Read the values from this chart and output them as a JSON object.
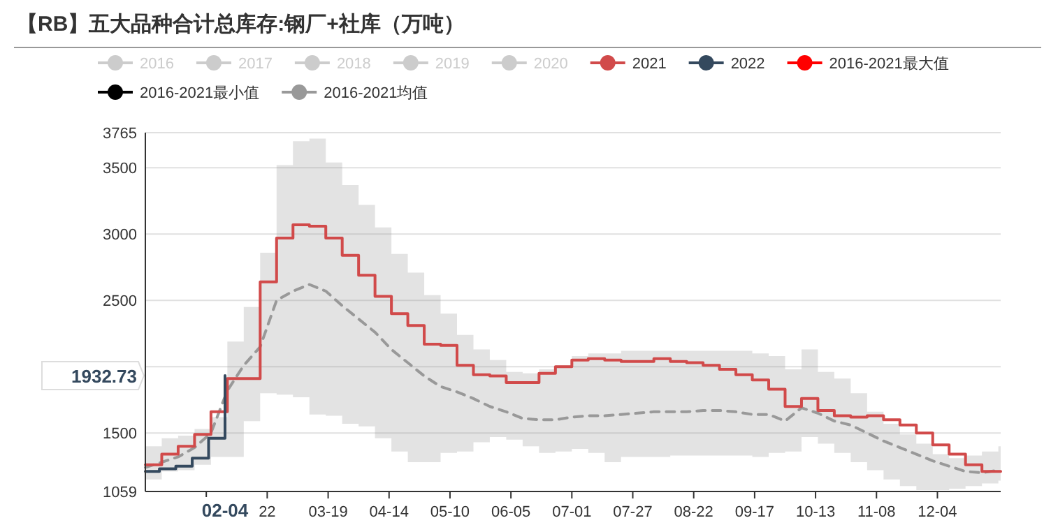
{
  "chart_data": {
    "type": "line",
    "title": "【RB】五大品种合计总库存:钢厂+社库（万吨）",
    "x": [
      "--01-01",
      "--01-08",
      "--01-15",
      "--01-22",
      "--01-29",
      "--02-05",
      "--02-12",
      "--02-19",
      "--02-26",
      "--03-04",
      "--03-11",
      "--03-18",
      "--03-25",
      "--04-01",
      "--04-08",
      "--04-15",
      "--04-22",
      "--04-29",
      "--05-06",
      "--05-13",
      "--05-20",
      "--05-27",
      "--06-03",
      "--06-10",
      "--06-17",
      "--06-24",
      "--07-01",
      "--07-08",
      "--07-15",
      "--07-22",
      "--07-29",
      "--08-05",
      "--08-12",
      "--08-19",
      "--08-26",
      "--09-02",
      "--09-09",
      "--09-16",
      "--09-23",
      "--09-30",
      "--10-07",
      "--10-14",
      "--10-21",
      "--10-28",
      "--11-04",
      "--11-11",
      "--11-18",
      "--11-25",
      "--12-02",
      "--12-09",
      "--12-16",
      "--12-23",
      "--12-30"
    ],
    "series": [
      {
        "name": "2016",
        "color": "#cccccc",
        "values": [
          null,
          null,
          null,
          null,
          null,
          null,
          null,
          null,
          null,
          null,
          null,
          null,
          null,
          null,
          null,
          null,
          null,
          null,
          null,
          null,
          null,
          null,
          null,
          null,
          null,
          null,
          null,
          null,
          null,
          null,
          null,
          null,
          null,
          null,
          null,
          null,
          null,
          null,
          null,
          null,
          null,
          null,
          null,
          null,
          null,
          null,
          null,
          null,
          null,
          null,
          null,
          null,
          null
        ]
      },
      {
        "name": "2017",
        "color": "#cccccc",
        "values": [
          null,
          null,
          null,
          null,
          null,
          null,
          null,
          null,
          null,
          null,
          null,
          null,
          null,
          null,
          null,
          null,
          null,
          null,
          null,
          null,
          null,
          null,
          null,
          null,
          null,
          null,
          null,
          null,
          null,
          null,
          null,
          null,
          null,
          null,
          null,
          null,
          null,
          null,
          null,
          null,
          null,
          null,
          null,
          null,
          null,
          null,
          null,
          null,
          null,
          null,
          null,
          null,
          null
        ]
      },
      {
        "name": "2018",
        "color": "#cccccc",
        "values": [
          null,
          null,
          null,
          null,
          null,
          null,
          null,
          null,
          null,
          null,
          null,
          null,
          null,
          null,
          null,
          null,
          null,
          null,
          null,
          null,
          null,
          null,
          null,
          null,
          null,
          null,
          null,
          null,
          null,
          null,
          null,
          null,
          null,
          null,
          null,
          null,
          null,
          null,
          null,
          null,
          null,
          null,
          null,
          null,
          null,
          null,
          null,
          null,
          null,
          null,
          null,
          null,
          null
        ]
      },
      {
        "name": "2019",
        "color": "#cccccc",
        "values": [
          null,
          null,
          null,
          null,
          null,
          null,
          null,
          null,
          null,
          null,
          null,
          null,
          null,
          null,
          null,
          null,
          null,
          null,
          null,
          null,
          null,
          null,
          null,
          null,
          null,
          null,
          null,
          null,
          null,
          null,
          null,
          null,
          null,
          null,
          null,
          null,
          null,
          null,
          null,
          null,
          null,
          null,
          null,
          null,
          null,
          null,
          null,
          null,
          null,
          null,
          null,
          null,
          null
        ]
      },
      {
        "name": "2020",
        "color": "#cccccc",
        "values": [
          null,
          null,
          null,
          null,
          null,
          null,
          null,
          null,
          null,
          null,
          null,
          null,
          null,
          null,
          null,
          null,
          null,
          null,
          null,
          null,
          null,
          null,
          null,
          null,
          null,
          null,
          null,
          null,
          null,
          null,
          null,
          null,
          null,
          null,
          null,
          null,
          null,
          null,
          null,
          null,
          null,
          null,
          null,
          null,
          null,
          null,
          null,
          null,
          null,
          null,
          null,
          null,
          null
        ]
      },
      {
        "name": "2021",
        "type": "step",
        "color": "#d14a4a",
        "values": [
          1260,
          1340,
          1400,
          1490,
          1660,
          1910,
          1910,
          2640,
          2970,
          3070,
          3060,
          2970,
          2840,
          2690,
          2530,
          2400,
          2310,
          2170,
          2160,
          2010,
          1940,
          1930,
          1880,
          1880,
          1950,
          2000,
          2050,
          2060,
          2050,
          2040,
          2040,
          2060,
          2040,
          2030,
          2010,
          1980,
          1940,
          1900,
          1830,
          1700,
          1760,
          1670,
          1630,
          1620,
          1630,
          1600,
          1560,
          1500,
          1410,
          1340,
          1260,
          1210,
          1210
        ]
      },
      {
        "name": "2022",
        "type": "step",
        "color": "#34495e",
        "x": [
          "--01-01",
          "--01-07",
          "--01-14",
          "--01-21",
          "--01-28",
          "--02-04"
        ],
        "values": [
          1210,
          1230,
          1250,
          1310,
          1460,
          1932.73
        ]
      },
      {
        "name": "2016-2021最大值",
        "color": "#ff0000",
        "values": [
          null,
          null,
          null,
          null,
          null,
          null,
          null,
          null,
          null,
          null,
          null,
          null,
          null,
          null,
          null,
          null,
          null,
          null,
          null,
          null,
          null,
          null,
          null,
          null,
          null,
          null,
          null,
          null,
          null,
          null,
          null,
          null,
          null,
          null,
          null,
          null,
          null,
          null,
          null,
          null,
          null,
          null,
          null,
          null,
          null,
          null,
          null,
          null,
          null,
          null,
          null,
          null,
          null
        ]
      },
      {
        "name": "2016-2021最小值",
        "color": "#000000",
        "values": [
          null,
          null,
          null,
          null,
          null,
          null,
          null,
          null,
          null,
          null,
          null,
          null,
          null,
          null,
          null,
          null,
          null,
          null,
          null,
          null,
          null,
          null,
          null,
          null,
          null,
          null,
          null,
          null,
          null,
          null,
          null,
          null,
          null,
          null,
          null,
          null,
          null,
          null,
          null,
          null,
          null,
          null,
          null,
          null,
          null,
          null,
          null,
          null,
          null,
          null,
          null,
          null,
          null
        ]
      },
      {
        "name": "2016-2021均值",
        "color": "#999999",
        "line_style": "dashed",
        "values": [
          1240,
          1280,
          1320,
          1390,
          1500,
          1820,
          2010,
          2150,
          2500,
          2570,
          2620,
          2570,
          2460,
          2360,
          2260,
          2130,
          2030,
          1930,
          1850,
          1810,
          1760,
          1700,
          1660,
          1610,
          1600,
          1600,
          1620,
          1630,
          1630,
          1640,
          1650,
          1660,
          1660,
          1660,
          1670,
          1670,
          1660,
          1640,
          1640,
          1590,
          1690,
          1650,
          1590,
          1560,
          1500,
          1440,
          1390,
          1340,
          1290,
          1250,
          1210,
          1200,
          1220
        ],
        "lower": [
          1150,
          1210,
          1220,
          1260,
          1320,
          1320,
          1590,
          1800,
          1790,
          1770,
          1640,
          1630,
          1570,
          1550,
          1460,
          1360,
          1280,
          1280,
          1350,
          1360,
          1430,
          1470,
          1450,
          1400,
          1350,
          1360,
          1380,
          1350,
          1280,
          1320,
          1320,
          1320,
          1330,
          1330,
          1330,
          1330,
          1330,
          1320,
          1350,
          1360,
          1470,
          1420,
          1350,
          1280,
          1220,
          1150,
          1100,
          1070,
          1070,
          1080,
          1100,
          1120,
          1140
        ],
        "upper": [
          1400,
          1460,
          1480,
          1530,
          1620,
          2190,
          2450,
          2860,
          3520,
          3700,
          3720,
          3540,
          3370,
          3220,
          3050,
          2850,
          2710,
          2540,
          2400,
          2240,
          2130,
          2050,
          1960,
          1950,
          1980,
          2010,
          2080,
          2100,
          2100,
          2120,
          2120,
          2120,
          2120,
          2120,
          2120,
          2120,
          2120,
          2100,
          2080,
          1980,
          2130,
          1960,
          1910,
          1800,
          1660,
          1570,
          1490,
          1420,
          1340,
          1310,
          1330,
          1360,
          1400
        ]
      }
    ],
    "xlim": [
      "--01-01",
      "--12-31"
    ],
    "xticks": [
      {
        "value": "--01-27",
        "label": null
      },
      {
        "value": "--02-04",
        "label": "02-04"
      },
      {
        "value": "--02-22",
        "label": "22"
      },
      {
        "value": "--03-19",
        "label": "03-19"
      },
      {
        "value": "--04-14",
        "label": "04-14"
      },
      {
        "value": "--05-10",
        "label": "05-10"
      },
      {
        "value": "--06-05",
        "label": "06-05"
      },
      {
        "value": "--07-01",
        "label": "07-01"
      },
      {
        "value": "--07-27",
        "label": "07-27"
      },
      {
        "value": "--08-22",
        "label": "08-22"
      },
      {
        "value": "--09-17",
        "label": "09-17"
      },
      {
        "value": "--10-13",
        "label": "10-13"
      },
      {
        "value": "--11-08",
        "label": "11-08"
      },
      {
        "value": "--12-04",
        "label": "12-04"
      }
    ],
    "ylim": [
      1059,
      3765
    ],
    "yticks": [
      1059,
      1500,
      1932.73,
      {
        "value": 2000,
        "label": null
      },
      2500,
      3000,
      3500,
      3765
    ],
    "grid": "y",
    "legend": "top",
    "marker": "none"
  }
}
